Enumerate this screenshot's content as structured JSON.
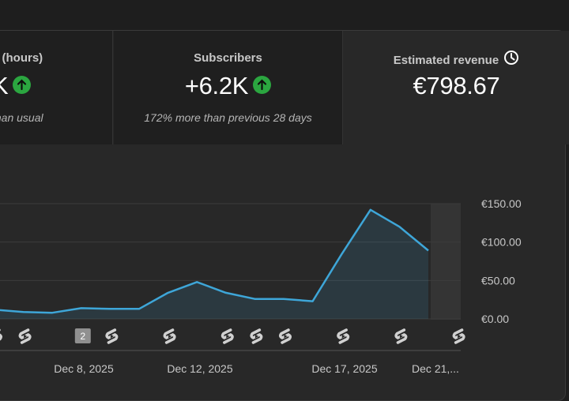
{
  "cards": [
    {
      "label": "e (hours)",
      "value": "K",
      "sub": "than usual",
      "trend": "up"
    },
    {
      "label": "Subscribers",
      "value": "+6.2K",
      "sub": "172% more than previous 28 days",
      "trend": "up"
    },
    {
      "label": "Estimated revenue",
      "value": "€798.67",
      "sub": "",
      "icon": "clock-icon"
    }
  ],
  "chart_data": {
    "type": "area",
    "x_labels": [
      "Dec 8, 2025",
      "Dec 12, 2025",
      "Dec 17, 2025",
      "Dec 21,..."
    ],
    "y_ticks": [
      "€150.00",
      "€100.00",
      "€50.00",
      "€0.00"
    ],
    "ylim": [
      0,
      150
    ],
    "values": [
      12,
      9,
      8,
      14,
      13,
      13,
      34,
      48,
      34,
      26,
      26,
      23,
      84,
      142,
      120,
      89
    ],
    "series_color": "#3ea6d8",
    "highlight_last_point": true,
    "video_markers": [
      {
        "day": 0,
        "label": ""
      },
      {
        "day": 1,
        "label": ""
      },
      {
        "day": 3,
        "label": "2"
      },
      {
        "day": 4,
        "label": ""
      },
      {
        "day": 6,
        "label": ""
      },
      {
        "day": 8,
        "label": ""
      },
      {
        "day": 9,
        "label": ""
      },
      {
        "day": 10,
        "label": ""
      },
      {
        "day": 12,
        "label": ""
      },
      {
        "day": 14,
        "label": ""
      },
      {
        "day": 16,
        "label": ""
      }
    ]
  }
}
